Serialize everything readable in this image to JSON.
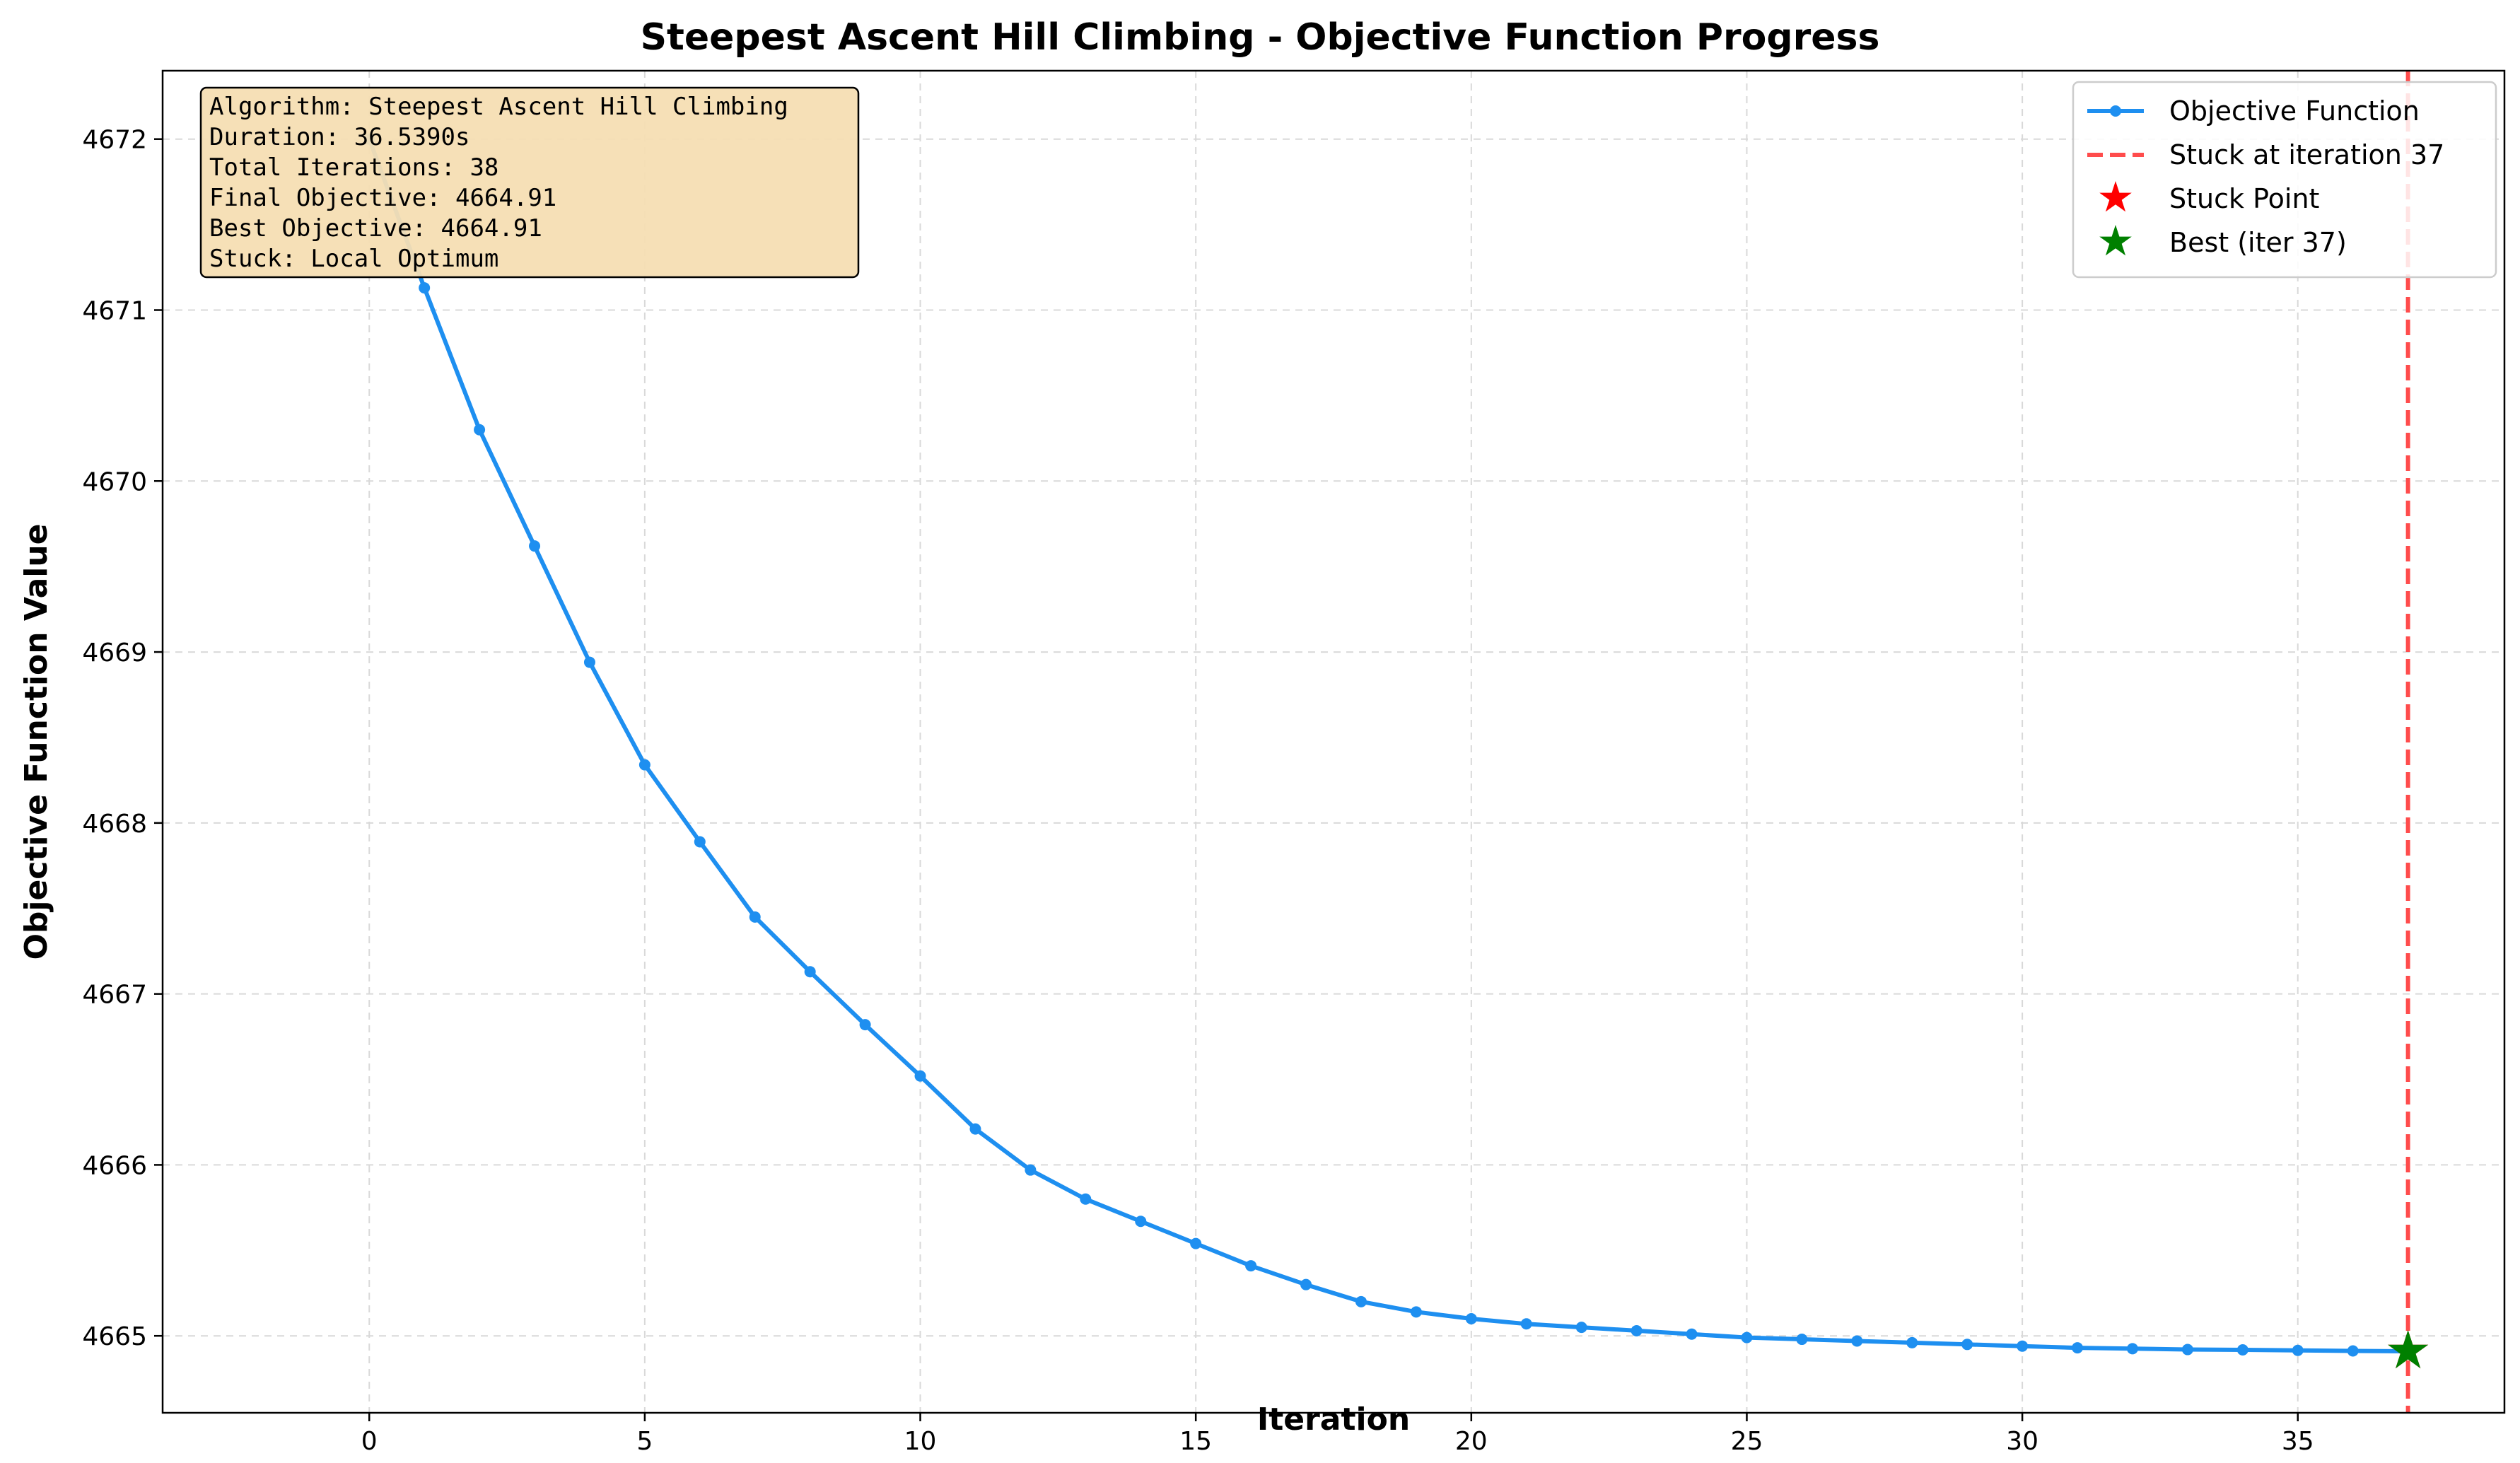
{
  "chart_data": {
    "type": "line",
    "title": "Steepest Ascent Hill Climbing - Objective Function Progress",
    "xlabel": "Iteration",
    "ylabel": "Objective Function Value",
    "xlim": [
      -3.75,
      38.75
    ],
    "ylim": [
      4664.55,
      4672.4
    ],
    "x_ticks": [
      0,
      5,
      10,
      15,
      20,
      25,
      30,
      35
    ],
    "y_ticks": [
      4665,
      4666,
      4667,
      4668,
      4669,
      4670,
      4671,
      4672
    ],
    "grid": true,
    "legend_position": "top-right",
    "colors": {
      "objective": "#1e8ff0",
      "stuck_line": "#ff4c4c",
      "stuck_point": "#ff0000",
      "best_point": "#008000",
      "info_box_bg": "#f5deb3",
      "grid": "#d9d9d9"
    },
    "series": [
      {
        "name": "Objective Function",
        "x": [
          0,
          1,
          2,
          3,
          4,
          5,
          6,
          7,
          8,
          9,
          10,
          11,
          12,
          13,
          14,
          15,
          16,
          17,
          18,
          19,
          20,
          21,
          22,
          23,
          24,
          25,
          26,
          27,
          28,
          29,
          30,
          31,
          32,
          33,
          34,
          35,
          36,
          37
        ],
        "values": [
          4672.0,
          4671.13,
          4670.3,
          4669.62,
          4668.94,
          4668.34,
          4667.89,
          4667.45,
          4667.13,
          4666.82,
          4666.52,
          4666.21,
          4665.97,
          4665.8,
          4665.67,
          4665.54,
          4665.41,
          4665.3,
          4665.2,
          4665.14,
          4665.1,
          4665.07,
          4665.05,
          4665.03,
          4665.01,
          4664.99,
          4664.98,
          4664.97,
          4664.96,
          4664.95,
          4664.94,
          4664.93,
          4664.925,
          4664.92,
          4664.918,
          4664.915,
          4664.912,
          4664.91
        ]
      }
    ],
    "stuck_iteration": 37,
    "stuck_point": {
      "x": 37,
      "y": 4664.91
    },
    "best_point": {
      "x": 37,
      "y": 4664.91
    },
    "legend": [
      {
        "label": "Objective Function",
        "kind": "line-marker"
      },
      {
        "label": "Stuck at iteration 37",
        "kind": "dashed"
      },
      {
        "label": "Stuck Point",
        "kind": "red-star"
      },
      {
        "label": "Best (iter 37)",
        "kind": "green-star"
      }
    ],
    "info_box": [
      "Algorithm: Steepest Ascent Hill Climbing",
      "Duration: 36.5390s",
      "Total Iterations: 38",
      "Final Objective: 4664.91",
      "Best Objective: 4664.91",
      "Stuck: Local Optimum"
    ]
  }
}
